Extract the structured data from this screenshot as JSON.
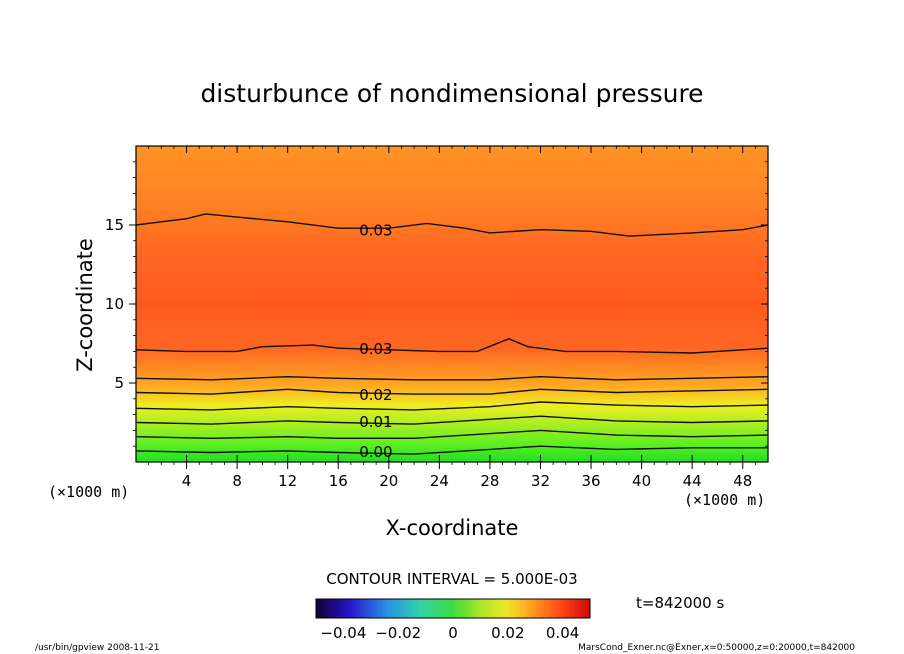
{
  "chart_data": {
    "type": "contour",
    "title": "disturbunce of nondimensional pressure",
    "xlabel": "X-coordinate",
    "ylabel": "Z-coordinate",
    "x_unit": "(×1000 m)",
    "y_unit": "(×1000 m)",
    "xlim": [
      0,
      50
    ],
    "ylim": [
      0,
      20
    ],
    "x_ticks": [
      4,
      8,
      12,
      16,
      20,
      24,
      28,
      32,
      36,
      40,
      44,
      48
    ],
    "y_ticks": [
      5,
      10,
      15
    ],
    "contour_interval_text": "CONTOUR INTERVAL = 5.000E-03",
    "time_label": "t=842000 s",
    "colorbar": {
      "min": -0.05,
      "max": 0.05,
      "ticks": [
        -0.04,
        -0.02,
        0,
        0.02,
        0.04
      ],
      "tick_labels": [
        "−0.04",
        "−0.02",
        "0",
        "0.02",
        "0.04"
      ]
    },
    "contour_labels": [
      {
        "text": "0.03",
        "x": 17.5,
        "y": 14.7
      },
      {
        "text": "0.03",
        "x": 17.5,
        "y": 7.2
      },
      {
        "text": "0.02",
        "x": 17.5,
        "y": 4.3
      },
      {
        "text": "0.01",
        "x": 17.5,
        "y": 2.6
      },
      {
        "text": "0.00",
        "x": 17.5,
        "y": 0.7
      }
    ],
    "contour_lines": [
      {
        "level": 0.03,
        "points": [
          [
            0,
            15.0
          ],
          [
            2,
            15.2
          ],
          [
            4,
            15.4
          ],
          [
            5.5,
            15.7
          ],
          [
            8,
            15.5
          ],
          [
            12,
            15.2
          ],
          [
            16,
            14.8
          ],
          [
            20,
            14.8
          ],
          [
            23,
            15.1
          ],
          [
            26,
            14.8
          ],
          [
            28,
            14.5
          ],
          [
            32,
            14.7
          ],
          [
            36,
            14.6
          ],
          [
            39,
            14.3
          ],
          [
            44,
            14.5
          ],
          [
            48,
            14.7
          ],
          [
            50,
            15.0
          ]
        ]
      },
      {
        "level": 0.03,
        "points": [
          [
            0,
            7.1
          ],
          [
            4,
            7.0
          ],
          [
            8,
            7.0
          ],
          [
            10,
            7.3
          ],
          [
            14,
            7.4
          ],
          [
            16,
            7.2
          ],
          [
            20,
            7.1
          ],
          [
            24,
            7.0
          ],
          [
            27,
            7.0
          ],
          [
            29.5,
            7.8
          ],
          [
            31,
            7.3
          ],
          [
            34,
            7.0
          ],
          [
            38,
            7.0
          ],
          [
            44,
            6.9
          ],
          [
            48,
            7.1
          ],
          [
            50,
            7.2
          ]
        ]
      },
      {
        "level": 0.025,
        "points": [
          [
            0,
            5.3
          ],
          [
            6,
            5.2
          ],
          [
            12,
            5.4
          ],
          [
            16,
            5.3
          ],
          [
            22,
            5.2
          ],
          [
            28,
            5.2
          ],
          [
            32,
            5.4
          ],
          [
            38,
            5.2
          ],
          [
            44,
            5.3
          ],
          [
            50,
            5.4
          ]
        ]
      },
      {
        "level": 0.02,
        "points": [
          [
            0,
            4.4
          ],
          [
            6,
            4.3
          ],
          [
            12,
            4.6
          ],
          [
            16,
            4.4
          ],
          [
            22,
            4.3
          ],
          [
            28,
            4.3
          ],
          [
            32,
            4.6
          ],
          [
            38,
            4.4
          ],
          [
            44,
            4.5
          ],
          [
            50,
            4.6
          ]
        ]
      },
      {
        "level": 0.015,
        "points": [
          [
            0,
            3.4
          ],
          [
            6,
            3.3
          ],
          [
            12,
            3.5
          ],
          [
            16,
            3.4
          ],
          [
            22,
            3.3
          ],
          [
            28,
            3.5
          ],
          [
            32,
            3.8
          ],
          [
            38,
            3.6
          ],
          [
            44,
            3.5
          ],
          [
            50,
            3.6
          ]
        ]
      },
      {
        "level": 0.01,
        "points": [
          [
            0,
            2.5
          ],
          [
            6,
            2.4
          ],
          [
            12,
            2.6
          ],
          [
            16,
            2.5
          ],
          [
            22,
            2.4
          ],
          [
            28,
            2.7
          ],
          [
            32,
            2.9
          ],
          [
            38,
            2.6
          ],
          [
            44,
            2.5
          ],
          [
            50,
            2.6
          ]
        ]
      },
      {
        "level": 0.005,
        "points": [
          [
            0,
            1.6
          ],
          [
            6,
            1.5
          ],
          [
            12,
            1.6
          ],
          [
            16,
            1.5
          ],
          [
            22,
            1.5
          ],
          [
            28,
            1.8
          ],
          [
            32,
            2.0
          ],
          [
            38,
            1.7
          ],
          [
            44,
            1.6
          ],
          [
            50,
            1.7
          ]
        ]
      },
      {
        "level": 0.0,
        "points": [
          [
            0,
            0.7
          ],
          [
            6,
            0.6
          ],
          [
            12,
            0.7
          ],
          [
            16,
            0.6
          ],
          [
            22,
            0.5
          ],
          [
            28,
            0.8
          ],
          [
            32,
            1.0
          ],
          [
            38,
            0.8
          ],
          [
            44,
            0.9
          ],
          [
            50,
            0.9
          ]
        ]
      }
    ]
  },
  "footer": {
    "left": "/usr/bin/gpview  2008-11-21",
    "right": "MarsCond_Exner.nc@Exner,x=0:50000,z=0:20000,t=842000"
  }
}
